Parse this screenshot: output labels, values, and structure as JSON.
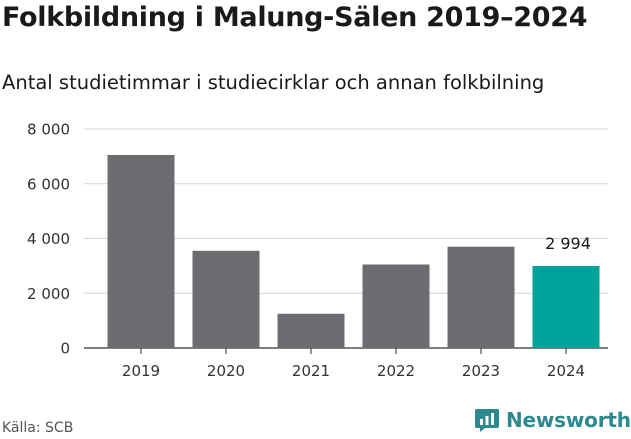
{
  "title": "Folkbildning i Malung-Sälen 2019–2024",
  "subtitle": "Antal studietimmar i studiecirklar och annan folkbilning",
  "source": "Källa: SCB",
  "brand": {
    "name": "Newsworthy",
    "color": "#2c8a8f",
    "icon": "newsworthy-logo-icon"
  },
  "chart_data": {
    "type": "bar",
    "categories": [
      "2019",
      "2020",
      "2021",
      "2022",
      "2023",
      "2024"
    ],
    "values": [
      7050,
      3550,
      1250,
      3050,
      3700,
      2994
    ],
    "ylim": [
      0,
      8000
    ],
    "yticks": [
      0,
      2000,
      4000,
      6000,
      8000
    ],
    "ytick_labels": [
      "0",
      "2 000",
      "4 000",
      "6 000",
      "8 000"
    ],
    "data_labels": [
      {
        "index": 5,
        "text": "2 994"
      }
    ],
    "colors": {
      "default": "#6d6c70",
      "highlight": "#00a39a",
      "highlight_index": 5
    },
    "grid": true,
    "legend": "none"
  }
}
